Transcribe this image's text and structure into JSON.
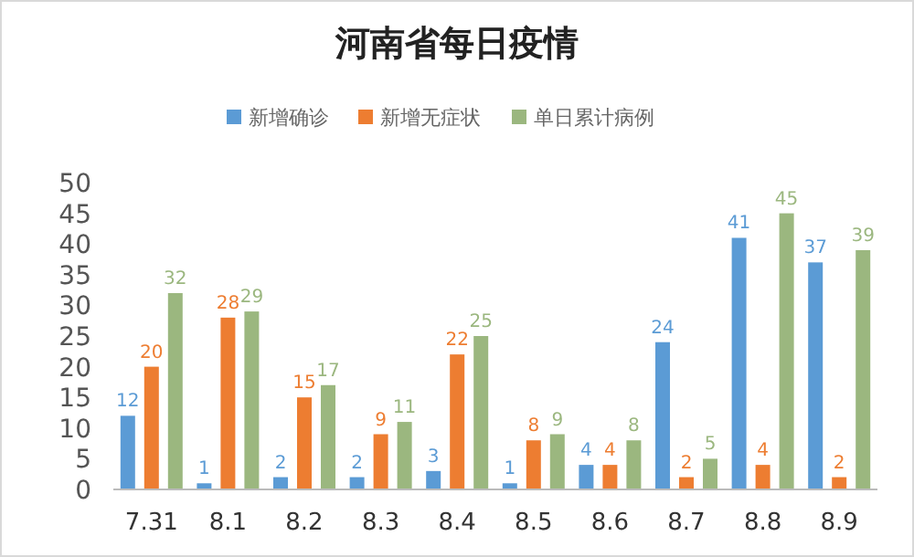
{
  "chart_data": {
    "type": "bar",
    "title": "河南省每日疫情",
    "categories": [
      "7.31",
      "8.1",
      "8.2",
      "8.3",
      "8.4",
      "8.5",
      "8.6",
      "8.7",
      "8.8",
      "8.9"
    ],
    "series": [
      {
        "name": "新增确诊",
        "color": "#5b9bd5",
        "values": [
          12,
          1,
          2,
          2,
          3,
          1,
          4,
          24,
          41,
          37
        ]
      },
      {
        "name": "新增无症状",
        "color": "#ed7d31",
        "values": [
          20,
          28,
          15,
          9,
          22,
          8,
          4,
          2,
          4,
          2
        ]
      },
      {
        "name": "单日累计病例",
        "color": "#9bb77f",
        "values": [
          32,
          29,
          17,
          11,
          25,
          9,
          8,
          5,
          45,
          39
        ]
      }
    ],
    "ylim": [
      0,
      50
    ],
    "yticks": [
      0,
      5,
      10,
      15,
      20,
      25,
      30,
      35,
      40,
      45,
      50
    ],
    "data_labels": true,
    "legend": "top",
    "grid": false
  }
}
